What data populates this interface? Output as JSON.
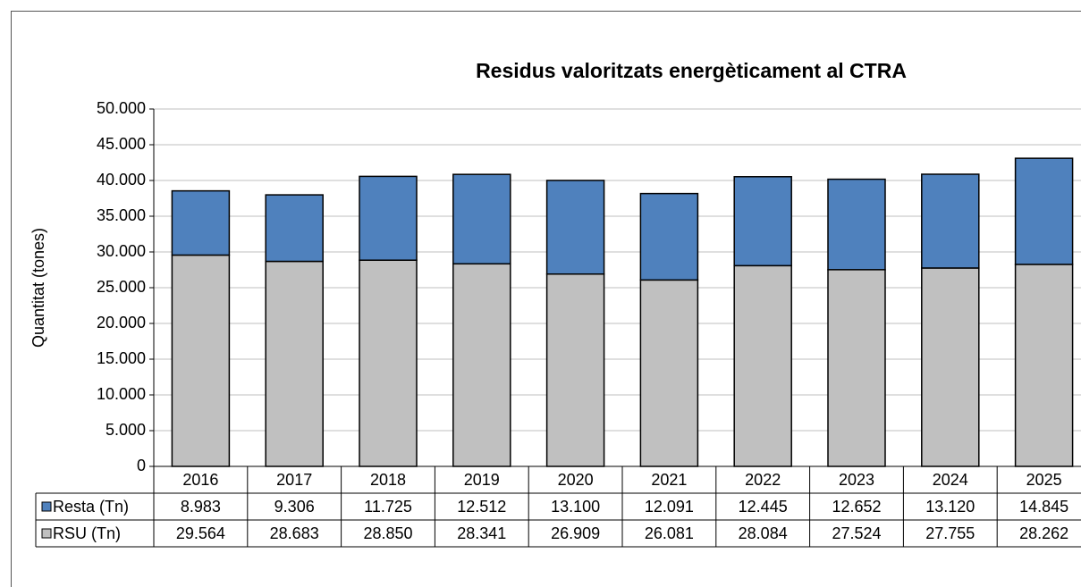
{
  "chart_data": {
    "type": "stacked_bar",
    "title": "Residus valoritzats energèticament al CTRA",
    "y_label": "Quantitat (tones)",
    "categories": [
      "2016",
      "2017",
      "2018",
      "2019",
      "2020",
      "2021",
      "2022",
      "2023",
      "2024",
      "2025"
    ],
    "series": [
      {
        "name": "Resta (Tn)",
        "color": "#4f81bd",
        "values": [
          8983,
          9306,
          11725,
          12512,
          13100,
          12091,
          12445,
          12652,
          13120,
          14845
        ],
        "value_labels": [
          "8.983",
          "9.306",
          "11.725",
          "12.512",
          "13.100",
          "12.091",
          "12.445",
          "12.652",
          "13.120",
          "14.845"
        ]
      },
      {
        "name": "RSU (Tn)",
        "color": "#c0c0c0",
        "values": [
          29564,
          28683,
          28850,
          28341,
          26909,
          26081,
          28084,
          27524,
          27755,
          28262
        ],
        "value_labels": [
          "29.564",
          "28.683",
          "28.850",
          "28.341",
          "26.909",
          "26.081",
          "28.084",
          "27.524",
          "27.755",
          "28.262"
        ]
      }
    ],
    "ylim": [
      0,
      50000
    ],
    "yticks": [
      0,
      {
        "value": 5000,
        "label": "5.000"
      },
      {
        "value": 10000,
        "label": "10.000"
      },
      {
        "value": 15000,
        "label": "15.000"
      },
      {
        "value": 20000,
        "label": "20.000"
      },
      {
        "value": 25000,
        "label": "25.000"
      },
      {
        "value": 30000,
        "label": "30.000"
      },
      {
        "value": 35000,
        "label": "35.000"
      },
      {
        "value": 40000,
        "label": "40.000"
      },
      {
        "value": 45000,
        "label": "45.000"
      },
      {
        "value": 50000,
        "label": "50.000"
      }
    ],
    "grid": true,
    "legend": "table"
  }
}
